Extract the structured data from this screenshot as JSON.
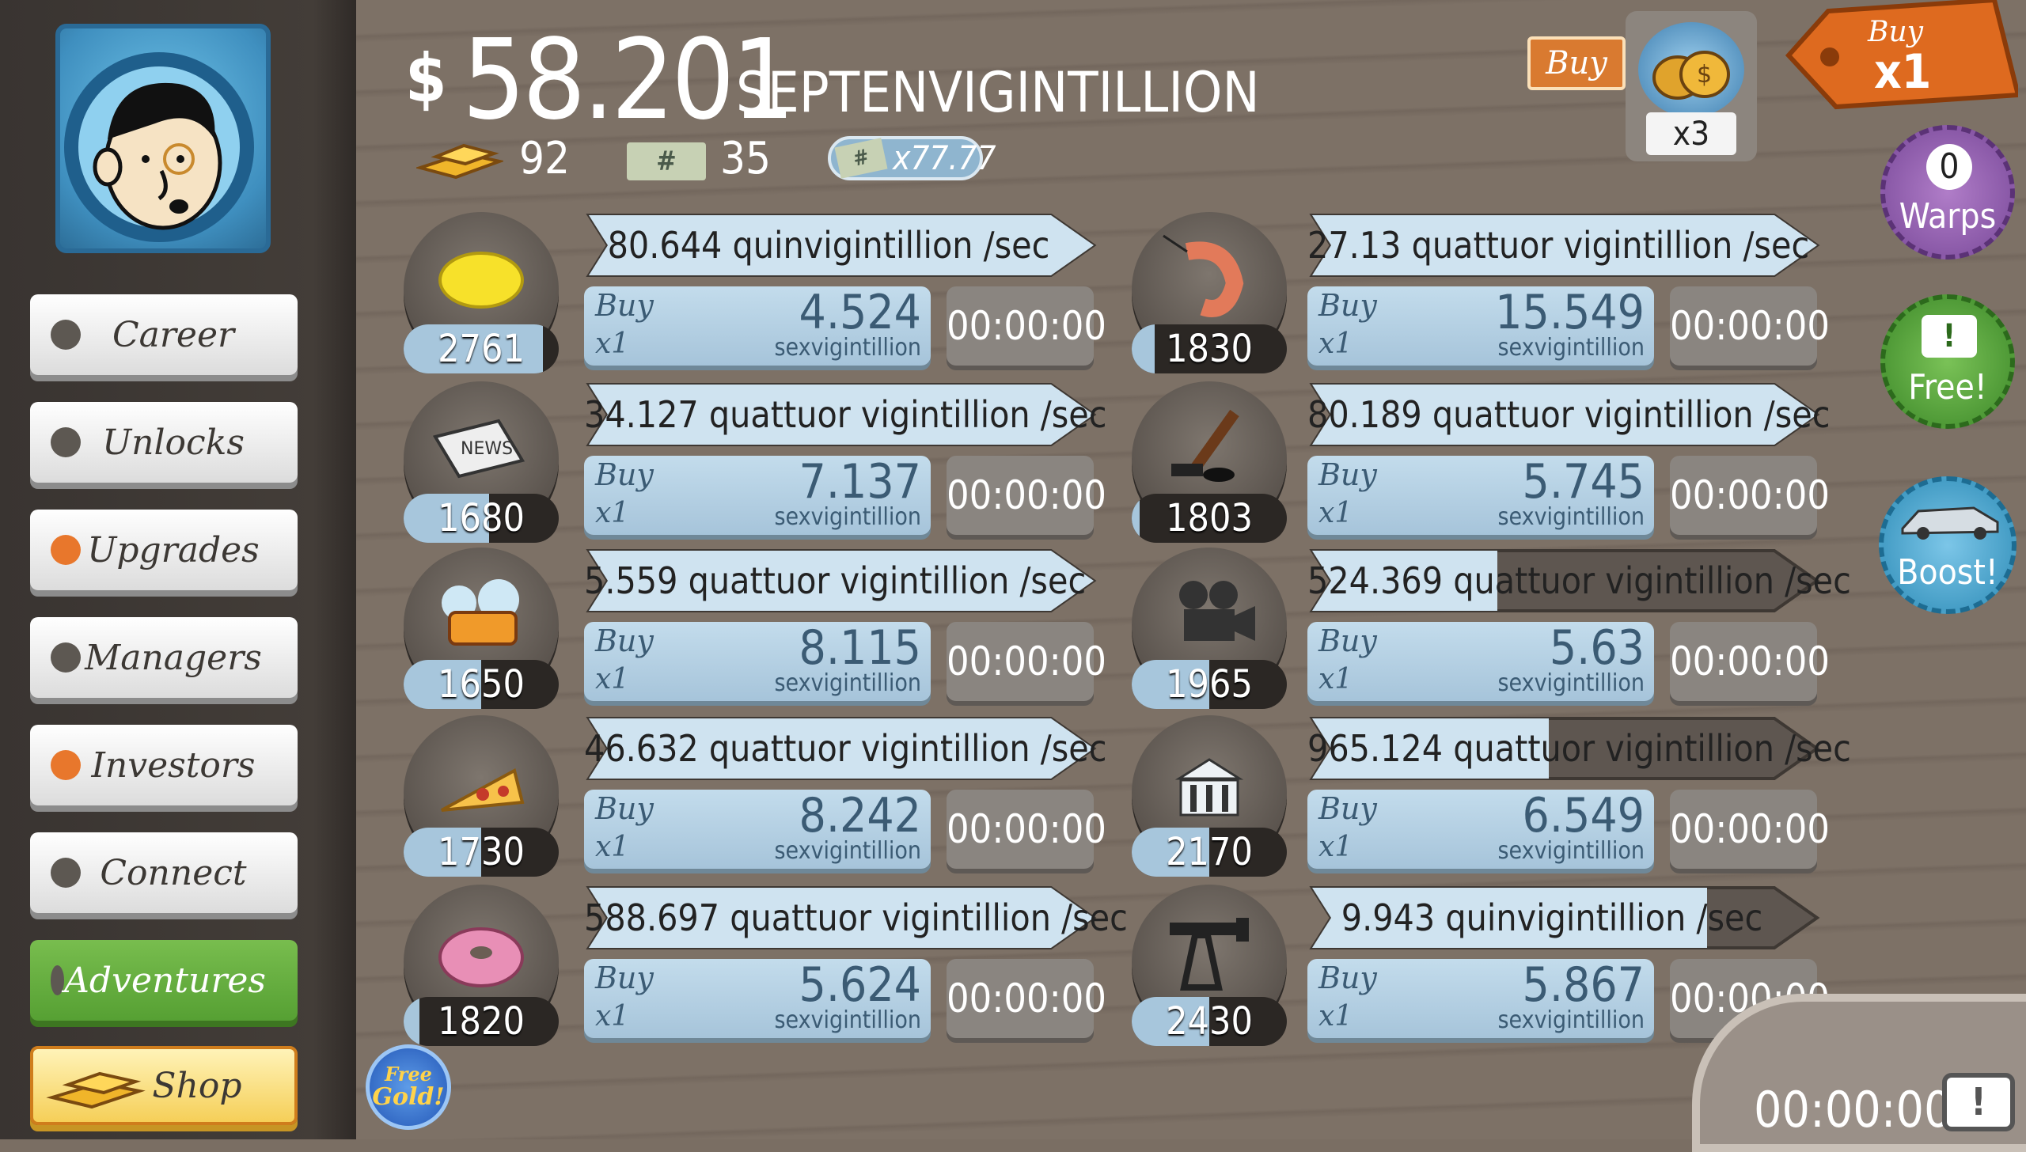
{
  "header": {
    "currency_symbol": "$",
    "money_amount": "58.201",
    "money_unit": "SEPTENVIGINTILLION",
    "gold": "92",
    "megabucks": "35",
    "multiplier": "x77.77"
  },
  "topright": {
    "buy_label": "Buy",
    "bag_multiplier": "x3",
    "buy_x1_top": "Buy",
    "buy_x1_bottom": "x1",
    "warps_count": "0",
    "warps_label": "Warps",
    "free_label": "Free!",
    "boost_label": "Boost!"
  },
  "sidebar": {
    "items": [
      {
        "label": "Career"
      },
      {
        "label": "Unlocks"
      },
      {
        "label": "Upgrades"
      },
      {
        "label": "Managers"
      },
      {
        "label": "Investors"
      },
      {
        "label": "Connect"
      },
      {
        "label": "Adventures"
      },
      {
        "label": "Shop"
      }
    ]
  },
  "free_gold": {
    "line1": "Free",
    "line2": "Gold!"
  },
  "buy_labels": {
    "buy": "Buy",
    "qty": "x1",
    "unit": "sexvigintillion"
  },
  "businesses": [
    {
      "icon": "lemon-icon",
      "count": "2761",
      "rate": "80.644 quinvigintillion /sec",
      "cost": "4.524",
      "timer": "00:00:00",
      "progress": 1.0
    },
    {
      "icon": "shrimp-icon",
      "count": "1830",
      "rate": "27.13 quattuor vigintillion /sec",
      "cost": "15.549",
      "timer": "00:00:00",
      "progress": 1.0
    },
    {
      "icon": "newspaper-icon",
      "count": "1680",
      "rate": "34.127 quattuor vigintillion /sec",
      "cost": "7.137",
      "timer": "00:00:00",
      "progress": 1.0
    },
    {
      "icon": "hockey-icon",
      "count": "1803",
      "rate": "80.189 quattuor vigintillion /sec",
      "cost": "5.745",
      "timer": "00:00:00",
      "progress": 1.0
    },
    {
      "icon": "car-wash-icon",
      "count": "1650",
      "rate": "5.559 quattuor vigintillion /sec",
      "cost": "8.115",
      "timer": "00:00:00",
      "progress": 1.0
    },
    {
      "icon": "movie-camera-icon",
      "count": "1965",
      "rate": "524.369 quattuor vigintillion /sec",
      "cost": "5.63",
      "timer": "00:00:00",
      "progress": 0.37
    },
    {
      "icon": "pizza-icon",
      "count": "1730",
      "rate": "46.632 quattuor vigintillion /sec",
      "cost": "8.242",
      "timer": "00:00:00",
      "progress": 1.0
    },
    {
      "icon": "bank-icon",
      "count": "2170",
      "rate": "965.124 quattuor vigintillion /sec",
      "cost": "6.549",
      "timer": "00:00:00",
      "progress": 0.47
    },
    {
      "icon": "donut-icon",
      "count": "1820",
      "rate": "588.697 quattuor vigintillion /sec",
      "cost": "5.624",
      "timer": "00:00:00",
      "progress": 1.0
    },
    {
      "icon": "oil-rig-icon",
      "count": "2430",
      "rate": "9.943 quinvigintillion /sec",
      "cost": "5.867",
      "timer": "00:00:00",
      "progress": 0.78
    }
  ],
  "count_progress": [
    0.9,
    0.15,
    0.55,
    0.05,
    0.5,
    0.5,
    0.5,
    0.5,
    0.1,
    0.5
  ],
  "bottom_timer": "00:00:00",
  "colors": {
    "banner_fill": "#cfe3f0",
    "banner_empty": "#5e5650",
    "accent_orange": "#e8772c"
  }
}
